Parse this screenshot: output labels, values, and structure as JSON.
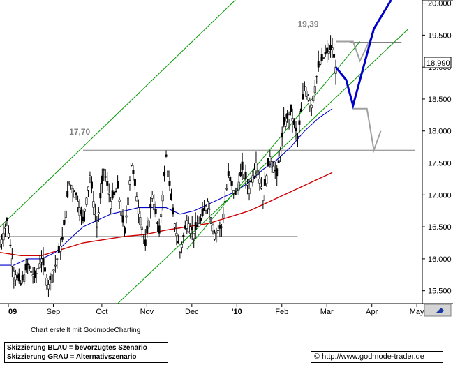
{
  "footer": {
    "credit": "Chart erstellt mit GodmodeCharting",
    "legend_line1": "Skizzierung BLAU = bevorzugtes Szenario",
    "legend_line2": "Skizzierung GRAU = Alternativszenario",
    "url": "© http://www.godmode-trader.de"
  },
  "chart_data": {
    "type": "candlestick",
    "x_ticks": [
      "09",
      "Sep",
      "Oct",
      "Nov",
      "Dec",
      "'10",
      "Feb",
      "Mar",
      "Apr",
      "May"
    ],
    "y_ticks": [
      "15.500",
      "16.000",
      "16.500",
      "17.000",
      "17.500",
      "18.000",
      "18.500",
      "19.000",
      "19.500",
      "20.000"
    ],
    "ylim": [
      15.3,
      20.05
    ],
    "last_price_label": "18.990",
    "annotations": [
      {
        "text": "17,70",
        "value": 17.7
      },
      {
        "text": "19,39",
        "value": 19.39
      }
    ],
    "horizontal_levels": [
      16.35,
      17.7,
      19.39
    ],
    "colors": {
      "price": "#000000",
      "ma_short": "#0000cc",
      "ma_long": "#cc0000",
      "channel": "#009900",
      "scenario_blue": "#0000cc",
      "scenario_grey": "#a0a0a0",
      "level": "#808080"
    },
    "price_path": [
      [
        0,
        16.2
      ],
      [
        2,
        16.6
      ],
      [
        4,
        15.8
      ],
      [
        6,
        15.6
      ],
      [
        8,
        15.9
      ],
      [
        10,
        15.7
      ],
      [
        12,
        16.0
      ],
      [
        14,
        15.6
      ],
      [
        16,
        15.9
      ],
      [
        18,
        16.3
      ],
      [
        20,
        17.2
      ],
      [
        22,
        17.0
      ],
      [
        24,
        16.6
      ],
      [
        26,
        17.3
      ],
      [
        28,
        16.5
      ],
      [
        30,
        17.4
      ],
      [
        32,
        16.9
      ],
      [
        34,
        17.1
      ],
      [
        36,
        16.4
      ],
      [
        38,
        17.5
      ],
      [
        40,
        16.8
      ],
      [
        42,
        16.2
      ],
      [
        44,
        17.0
      ],
      [
        46,
        16.4
      ],
      [
        48,
        17.6
      ],
      [
        50,
        16.7
      ],
      [
        52,
        16.1
      ],
      [
        54,
        16.6
      ],
      [
        56,
        16.4
      ],
      [
        58,
        16.6
      ],
      [
        60,
        16.9
      ],
      [
        62,
        16.4
      ],
      [
        64,
        16.5
      ],
      [
        66,
        17.3
      ],
      [
        68,
        17.0
      ],
      [
        70,
        17.4
      ],
      [
        72,
        17.1
      ],
      [
        74,
        17.5
      ],
      [
        76,
        17.0
      ],
      [
        78,
        17.6
      ],
      [
        80,
        17.3
      ],
      [
        82,
        18.1
      ],
      [
        84,
        18.3
      ],
      [
        86,
        17.9
      ],
      [
        88,
        18.7
      ],
      [
        90,
        18.4
      ],
      [
        92,
        19.0
      ],
      [
        94,
        19.2
      ],
      [
        96,
        19.3
      ],
      [
        97,
        19.0
      ]
    ],
    "ma_short": [
      [
        0,
        15.9
      ],
      [
        4,
        15.9
      ],
      [
        8,
        16.0
      ],
      [
        12,
        16.0
      ],
      [
        16,
        16.1
      ],
      [
        20,
        16.3
      ],
      [
        24,
        16.5
      ],
      [
        28,
        16.6
      ],
      [
        32,
        16.7
      ],
      [
        36,
        16.75
      ],
      [
        40,
        16.8
      ],
      [
        44,
        16.8
      ],
      [
        48,
        16.8
      ],
      [
        52,
        16.7
      ],
      [
        56,
        16.75
      ],
      [
        60,
        16.85
      ],
      [
        64,
        16.95
      ],
      [
        68,
        17.05
      ],
      [
        72,
        17.2
      ],
      [
        76,
        17.4
      ],
      [
        80,
        17.55
      ],
      [
        84,
        17.75
      ],
      [
        88,
        18.0
      ],
      [
        92,
        18.2
      ],
      [
        96,
        18.35
      ]
    ],
    "ma_long": [
      [
        0,
        16.1
      ],
      [
        6,
        16.05
      ],
      [
        12,
        16.05
      ],
      [
        18,
        16.15
      ],
      [
        24,
        16.25
      ],
      [
        30,
        16.3
      ],
      [
        36,
        16.35
      ],
      [
        42,
        16.38
      ],
      [
        48,
        16.45
      ],
      [
        54,
        16.5
      ],
      [
        60,
        16.55
      ],
      [
        66,
        16.65
      ],
      [
        72,
        16.75
      ],
      [
        78,
        16.9
      ],
      [
        84,
        17.05
      ],
      [
        90,
        17.2
      ],
      [
        96,
        17.35
      ]
    ],
    "channel_lines": [
      [
        [
          0,
          16.5
        ],
        [
          68,
          20.05
        ]
      ],
      [
        [
          34,
          15.3
        ],
        [
          118,
          19.6
        ]
      ],
      [
        [
          54,
          16.15
        ],
        [
          104,
          19.4
        ]
      ],
      [
        [
          0,
          16.9
        ],
        [
          0,
          16.9
        ]
      ]
    ],
    "scenario_blue": [
      [
        97,
        19.0
      ],
      [
        100,
        18.8
      ],
      [
        102,
        18.4
      ],
      [
        108,
        19.6
      ],
      [
        113,
        20.05
      ]
    ],
    "scenario_grey_up": [
      [
        97,
        19.4
      ],
      [
        102,
        19.4
      ],
      [
        104,
        19.1
      ],
      [
        108,
        19.55
      ]
    ],
    "scenario_grey_down": [
      [
        102,
        18.35
      ],
      [
        106,
        18.35
      ],
      [
        108,
        17.7
      ],
      [
        110,
        18.0
      ]
    ]
  }
}
